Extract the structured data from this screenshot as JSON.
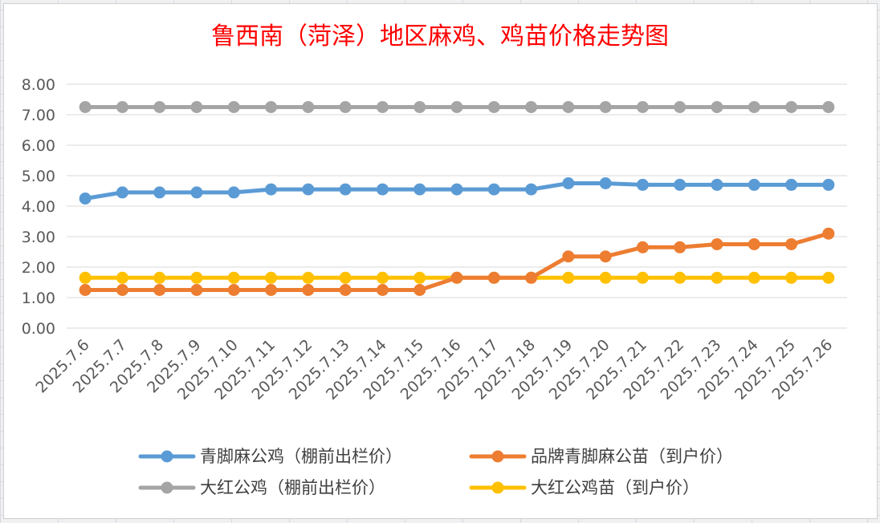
{
  "chart_data": {
    "type": "line",
    "title": "鲁西南（菏泽）地区麻鸡、鸡苗价格走势图",
    "xlabel": "",
    "ylabel": "",
    "ylim": [
      0,
      8
    ],
    "yticks": [
      "0.00",
      "1.00",
      "2.00",
      "3.00",
      "4.00",
      "5.00",
      "6.00",
      "7.00",
      "8.00"
    ],
    "grid": "horizontal",
    "legend_position": "bottom",
    "categories": [
      "2025.7.6",
      "2025.7.7",
      "2025.7.8",
      "2025.7.9",
      "2025.7.10",
      "2025.7.11",
      "2025.7.12",
      "2025.7.13",
      "2025.7.14",
      "2025.7.15",
      "2025.7.16",
      "2025.7.17",
      "2025.7.18",
      "2025.7.19",
      "2025.7.20",
      "2025.7.21",
      "2025.7.22",
      "2025.7.23",
      "2025.7.24",
      "2025.7.25",
      "2025.7.26"
    ],
    "series": [
      {
        "name": "青脚麻公鸡（棚前出栏价）",
        "color": "#5b9bd5",
        "values": [
          4.25,
          4.45,
          4.45,
          4.45,
          4.45,
          4.55,
          4.55,
          4.55,
          4.55,
          4.55,
          4.55,
          4.55,
          4.55,
          4.75,
          4.75,
          4.7,
          4.7,
          4.7,
          4.7,
          4.7,
          4.7
        ]
      },
      {
        "name": "品牌青脚麻公苗（到户价）",
        "color": "#ed7d31",
        "values": [
          1.25,
          1.25,
          1.25,
          1.25,
          1.25,
          1.25,
          1.25,
          1.25,
          1.25,
          1.25,
          1.65,
          1.65,
          1.65,
          2.35,
          2.35,
          2.65,
          2.65,
          2.75,
          2.75,
          2.75,
          3.1
        ]
      },
      {
        "name": "大红公鸡（棚前出栏价）",
        "color": "#a5a5a5",
        "values": [
          7.25,
          7.25,
          7.25,
          7.25,
          7.25,
          7.25,
          7.25,
          7.25,
          7.25,
          7.25,
          7.25,
          7.25,
          7.25,
          7.25,
          7.25,
          7.25,
          7.25,
          7.25,
          7.25,
          7.25,
          7.25
        ]
      },
      {
        "name": "大红公鸡苗（到户价）",
        "color": "#ffc000",
        "values": [
          1.65,
          1.65,
          1.65,
          1.65,
          1.65,
          1.65,
          1.65,
          1.65,
          1.65,
          1.65,
          1.65,
          1.65,
          1.65,
          1.65,
          1.65,
          1.65,
          1.65,
          1.65,
          1.65,
          1.65,
          1.65
        ]
      }
    ]
  }
}
